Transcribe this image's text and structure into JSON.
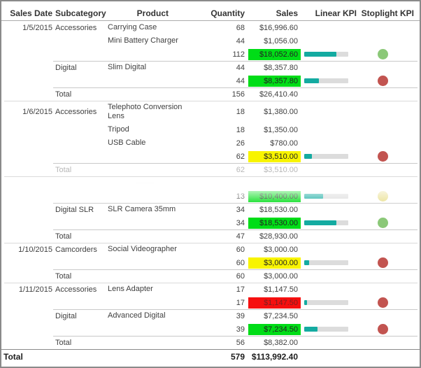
{
  "table": {
    "columns": [
      {
        "key": "date",
        "label": "Sales Date"
      },
      {
        "key": "subcategory",
        "label": "Subcategory"
      },
      {
        "key": "product",
        "label": "Product"
      },
      {
        "key": "quantity",
        "label": "Quantity"
      },
      {
        "key": "sales",
        "label": "Sales"
      },
      {
        "key": "linear",
        "label": "Linear KPI"
      },
      {
        "key": "stoplight",
        "label": "Stoplight KPI"
      }
    ],
    "rows": [
      {
        "type": "detail",
        "date": "1/5/2015",
        "subcategory": "Accessories",
        "product": "Carrying Case",
        "quantity": "68",
        "sales": "$16,996.60"
      },
      {
        "type": "detail",
        "product": "Mini Battery Charger",
        "quantity": "44",
        "sales": "$1,056.00"
      },
      {
        "type": "subtotal",
        "quantity": "112",
        "sales": "$18,052.60",
        "highlight": "green",
        "bar": 73,
        "dot": "green"
      },
      {
        "type": "detail",
        "subcategory": "Digital",
        "product": "Slim Digital",
        "quantity": "44",
        "sales": "$8,357.80",
        "line": "sub"
      },
      {
        "type": "subtotal",
        "quantity": "44",
        "sales": "$8,357.80",
        "highlight": "green",
        "bar": 34,
        "dot": "red"
      },
      {
        "type": "total",
        "subcategory": "Total",
        "quantity": "156",
        "sales": "$26,410.40",
        "line": "sub"
      },
      {
        "type": "detail",
        "date": "1/6/2015",
        "subcategory": "Accessories",
        "product": "Telephoto Conversion\nLens",
        "quantity": "18",
        "sales": "$1,380.00",
        "line": "date",
        "tall": true
      },
      {
        "type": "detail",
        "product": "Tripod",
        "quantity": "18",
        "sales": "$1,350.00"
      },
      {
        "type": "detail",
        "product": "USB Cable",
        "quantity": "26",
        "sales": "$780.00"
      },
      {
        "type": "subtotal",
        "quantity": "62",
        "sales": "$3,510.00",
        "highlight": "yellow",
        "bar": 18,
        "dot": "red"
      },
      {
        "type": "total",
        "subcategory": "Total",
        "quantity": "62",
        "sales": "$3,510.00",
        "line": "sub",
        "gray": true
      },
      {
        "type": "ghost",
        "line": "date"
      },
      {
        "type": "subtotal",
        "quantity": "13",
        "sales": "$10,400.00",
        "highlight": "green",
        "bar": 43,
        "dot": "yellow",
        "faded": true
      },
      {
        "type": "detail",
        "subcategory": "Digital SLR",
        "product": "SLR Camera 35mm",
        "quantity": "34",
        "sales": "$18,530.00",
        "line": "sub"
      },
      {
        "type": "subtotal",
        "quantity": "34",
        "sales": "$18,530.00",
        "highlight": "green",
        "bar": 73,
        "dot": "green"
      },
      {
        "type": "total",
        "subcategory": "Total",
        "quantity": "47",
        "sales": "$28,930.00",
        "line": "sub"
      },
      {
        "type": "detail",
        "date": "1/10/2015",
        "subcategory": "Camcorders",
        "product": "Social Videographer",
        "quantity": "60",
        "sales": "$3,000.00",
        "line": "date"
      },
      {
        "type": "subtotal",
        "quantity": "60",
        "sales": "$3,000.00",
        "highlight": "yellow",
        "bar": 11,
        "dot": "red"
      },
      {
        "type": "total",
        "subcategory": "Total",
        "quantity": "60",
        "sales": "$3,000.00",
        "line": "sub"
      },
      {
        "type": "detail",
        "date": "1/11/2015",
        "subcategory": "Accessories",
        "product": "Lens Adapter",
        "quantity": "17",
        "sales": "$1,147.50",
        "line": "date"
      },
      {
        "type": "subtotal",
        "quantity": "17",
        "sales": "$1,147.50",
        "highlight": "red",
        "bar": 6,
        "dot": "red"
      },
      {
        "type": "detail",
        "subcategory": "Digital",
        "product": "Advanced Digital",
        "quantity": "39",
        "sales": "$7,234.50",
        "line": "sub"
      },
      {
        "type": "subtotal",
        "quantity": "39",
        "sales": "$7,234.50",
        "highlight": "green",
        "bar": 30,
        "dot": "red"
      },
      {
        "type": "total",
        "subcategory": "Total",
        "quantity": "56",
        "sales": "$8,382.00",
        "line": "sub"
      },
      {
        "type": "grand",
        "date": "Total",
        "quantity": "579",
        "sales": "$113,992.40",
        "line": "grand"
      }
    ]
  },
  "colors": {
    "hl_green": "#00dd17",
    "hl_yellow": "#f8f400",
    "hl_red": "#f60f0f",
    "bar_fill": "#14aba1",
    "bar_track": "#dcdcdc",
    "dot_green": "#8bc878",
    "dot_yellow": "#e9df8e",
    "dot_red": "#c25450"
  }
}
